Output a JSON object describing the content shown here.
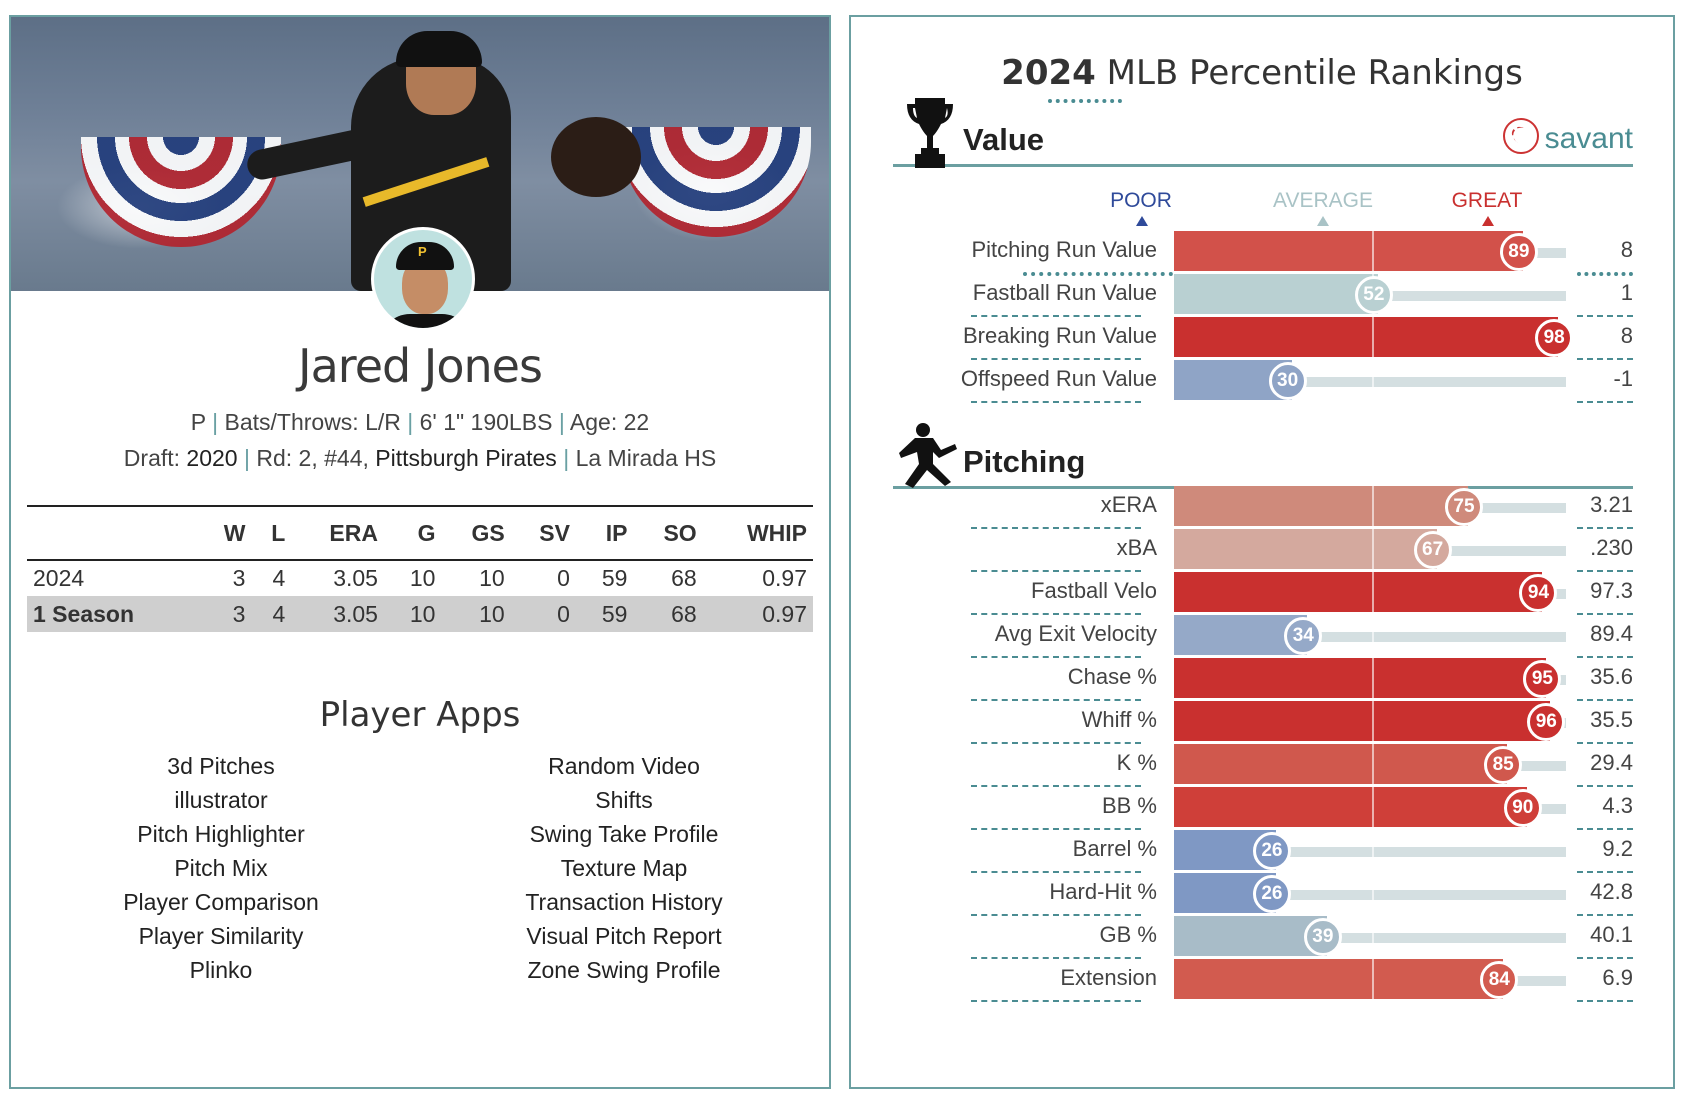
{
  "player": {
    "name": "Jared Jones",
    "bio_line1": {
      "position": "P",
      "bats_throws": "Bats/Throws: L/R",
      "height_weight": "6' 1\" 190LBS",
      "age": "Age: 22"
    },
    "bio_line2": {
      "draft_label": "Draft:",
      "draft_year": "2020",
      "round_pick": "Rd: 2, #44,",
      "team": "Pittsburgh Pirates",
      "school": "La Mirada HS"
    }
  },
  "stats_table": {
    "headers": [
      "",
      "W",
      "L",
      "ERA",
      "G",
      "GS",
      "SV",
      "IP",
      "SO",
      "WHIP"
    ],
    "rows": [
      [
        "2024",
        "3",
        "4",
        "3.05",
        "10",
        "10",
        "0",
        "59",
        "68",
        "0.97"
      ],
      [
        "1 Season",
        "3",
        "4",
        "3.05",
        "10",
        "10",
        "0",
        "59",
        "68",
        "0.97"
      ]
    ]
  },
  "player_apps": {
    "title": "Player Apps",
    "left": [
      "3d Pitches",
      "illustrator",
      "Pitch Highlighter",
      "Pitch Mix",
      "Player Comparison",
      "Player Similarity",
      "Plinko"
    ],
    "right": [
      "Random Video",
      "Shifts",
      "Swing Take Profile",
      "Texture Map",
      "Transaction History",
      "Visual Pitch Report",
      "Zone Swing Profile"
    ]
  },
  "rankings": {
    "title_year": "2024",
    "title_rest": " MLB Percentile Rankings",
    "brand": "savant",
    "scale": {
      "poor": "POOR",
      "average": "AVERAGE",
      "great": "GREAT"
    },
    "sections": [
      {
        "label": "Value",
        "icon": "trophy-icon"
      },
      {
        "label": "Pitching",
        "icon": "pitcher-silhouette-icon"
      }
    ],
    "value_metrics": [
      {
        "label": "Pitching Run Value",
        "percentile": "89",
        "value": "8",
        "color": "#d2514a"
      },
      {
        "label": "Fastball Run Value",
        "percentile": "52",
        "value": "1",
        "color": "#b9d0d2"
      },
      {
        "label": "Breaking Run Value",
        "percentile": "98",
        "value": "8",
        "color": "#c9302f"
      },
      {
        "label": "Offspeed Run Value",
        "percentile": "30",
        "value": "-1",
        "color": "#8fa4c6"
      }
    ],
    "pitching_metrics": [
      {
        "label": "xERA",
        "percentile": "75",
        "value": "3.21",
        "color": "#cf8a7b"
      },
      {
        "label": "xBA",
        "percentile": "67",
        "value": ".230",
        "color": "#d4a99e"
      },
      {
        "label": "Fastball Velo",
        "percentile": "94",
        "value": "97.3",
        "color": "#c9302f"
      },
      {
        "label": "Avg Exit Velocity",
        "percentile": "34",
        "value": "89.4",
        "color": "#95a9c8"
      },
      {
        "label": "Chase %",
        "percentile": "95",
        "value": "35.6",
        "color": "#c9302f"
      },
      {
        "label": "Whiff %",
        "percentile": "96",
        "value": "35.5",
        "color": "#c9302f"
      },
      {
        "label": "K %",
        "percentile": "85",
        "value": "29.4",
        "color": "#d0584d"
      },
      {
        "label": "BB %",
        "percentile": "90",
        "value": "4.3",
        "color": "#cf3f39"
      },
      {
        "label": "Barrel %",
        "percentile": "26",
        "value": "9.2",
        "color": "#7f98c4"
      },
      {
        "label": "Hard-Hit %",
        "percentile": "26",
        "value": "42.8",
        "color": "#7f98c4"
      },
      {
        "label": "GB %",
        "percentile": "39",
        "value": "40.1",
        "color": "#a8bcc8"
      },
      {
        "label": "Extension",
        "percentile": "84",
        "value": "6.9",
        "color": "#d25b4f"
      }
    ],
    "colors": {
      "poor": "#2f4a9a",
      "average": "#a9c3c6",
      "great": "#c9302f",
      "accent": "#4a8c92"
    }
  }
}
